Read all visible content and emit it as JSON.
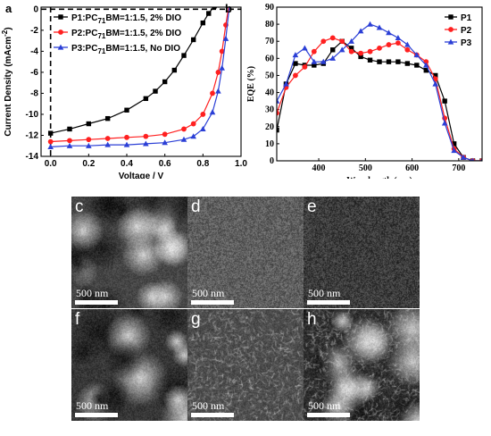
{
  "chart_data": [
    {
      "type": "line",
      "panel_label": "a",
      "xlabel": "Voltage / V",
      "ylabel": "Current Density (mAcm",
      "ylabel_sup": "-2",
      "ylabel_end": ")",
      "xlim": [
        -0.05,
        1.0
      ],
      "ylim": [
        -14,
        0.2
      ],
      "xticks": [
        "0.0",
        "0.2",
        "0.4",
        "0.6",
        "0.8",
        "1.0"
      ],
      "xtick_values": [
        0.0,
        0.2,
        0.4,
        0.6,
        0.8,
        1.0
      ],
      "yticks": [
        "0",
        "-2",
        "-4",
        "-6",
        "-8",
        "-10",
        "-12",
        "-14"
      ],
      "ytick_values": [
        0,
        -2,
        -4,
        -6,
        -8,
        -10,
        -12,
        -14
      ],
      "legend_position": "top-left",
      "series": [
        {
          "name": "P1:PC71BM=1:1.5, 2% DIO",
          "legend_parts": [
            "P1:PC",
            "71",
            "BM=1:1.5, 2% DIO"
          ],
          "color": "#000000",
          "marker": "square",
          "x": [
            0.0,
            0.1,
            0.2,
            0.3,
            0.4,
            0.5,
            0.55,
            0.6,
            0.65,
            0.7,
            0.75,
            0.8,
            0.83,
            0.86,
            0.88
          ],
          "y": [
            -11.8,
            -11.4,
            -10.9,
            -10.4,
            -9.6,
            -8.5,
            -7.8,
            -6.9,
            -5.8,
            -4.4,
            -2.9,
            -1.3,
            -0.4,
            0.3,
            1.0
          ]
        },
        {
          "name": "P2:PC71BM=1:1.5, 2% DIO",
          "legend_parts": [
            "P2:PC",
            "71",
            "BM=1:1.5, 2% DIO"
          ],
          "color": "#ff2020",
          "marker": "circle",
          "x": [
            0.0,
            0.1,
            0.2,
            0.3,
            0.4,
            0.5,
            0.6,
            0.7,
            0.75,
            0.8,
            0.85,
            0.88,
            0.9,
            0.92,
            0.94
          ],
          "y": [
            -12.6,
            -12.5,
            -12.4,
            -12.3,
            -12.2,
            -12.1,
            -11.9,
            -11.4,
            -10.9,
            -10.0,
            -8.0,
            -6.0,
            -4.0,
            -1.5,
            0.8
          ]
        },
        {
          "name": "P3:PC71BM=1:1.5, No DIO",
          "legend_parts": [
            "P3:PC",
            "71",
            "BM=1:1.5, No DIO"
          ],
          "color": "#2b3fd6",
          "marker": "triangle",
          "x": [
            0.0,
            0.1,
            0.2,
            0.3,
            0.4,
            0.5,
            0.6,
            0.7,
            0.75,
            0.8,
            0.85,
            0.88,
            0.9,
            0.92,
            0.94
          ],
          "y": [
            -13.1,
            -13.0,
            -13.0,
            -12.9,
            -12.9,
            -12.8,
            -12.7,
            -12.4,
            -12.1,
            -11.4,
            -9.8,
            -7.8,
            -5.6,
            -2.8,
            0.5
          ]
        }
      ]
    },
    {
      "type": "line",
      "panel_label": "b",
      "xlabel": "Wavelength (nm)",
      "ylabel": "EQE (%)",
      "xlim": [
        310,
        750
      ],
      "ylim": [
        0,
        90
      ],
      "xticks": [
        "400",
        "500",
        "600",
        "700"
      ],
      "xtick_values": [
        400,
        500,
        600,
        700
      ],
      "yticks": [
        "0",
        "10",
        "20",
        "30",
        "40",
        "50",
        "60",
        "70",
        "80",
        "90"
      ],
      "ytick_values": [
        0,
        10,
        20,
        30,
        40,
        50,
        60,
        70,
        80,
        90
      ],
      "legend_position": "top-right",
      "series": [
        {
          "name": "P1",
          "color": "#000000",
          "marker": "square",
          "x": [
            310,
            330,
            350,
            370,
            390,
            410,
            430,
            450,
            470,
            490,
            510,
            530,
            550,
            570,
            590,
            610,
            630,
            650,
            670,
            690,
            710,
            730,
            750
          ],
          "y": [
            18,
            45,
            57,
            56,
            56,
            57,
            65,
            70,
            66,
            61,
            59,
            58,
            58,
            58,
            57,
            56,
            53,
            50,
            35,
            10,
            2,
            0,
            0
          ]
        },
        {
          "name": "P2",
          "color": "#ff2020",
          "marker": "circle",
          "x": [
            310,
            330,
            350,
            370,
            390,
            410,
            430,
            450,
            470,
            490,
            510,
            530,
            550,
            570,
            590,
            610,
            630,
            650,
            670,
            690,
            710,
            730,
            750
          ],
          "y": [
            28,
            43,
            50,
            55,
            64,
            70,
            72,
            70,
            64,
            63,
            64,
            66,
            68,
            69,
            65,
            62,
            58,
            48,
            25,
            7,
            2,
            0,
            0
          ]
        },
        {
          "name": "P3",
          "color": "#2b3fd6",
          "marker": "triangle",
          "x": [
            310,
            330,
            350,
            370,
            390,
            410,
            430,
            450,
            470,
            490,
            510,
            530,
            550,
            570,
            590,
            610,
            630,
            650,
            670,
            690,
            710,
            730,
            750
          ],
          "y": [
            35,
            45,
            62,
            66,
            58,
            58,
            60,
            65,
            70,
            76,
            80,
            78,
            75,
            72,
            68,
            62,
            56,
            45,
            22,
            6,
            2,
            0,
            0
          ]
        }
      ]
    }
  ],
  "micrographs": [
    {
      "label": "c",
      "scale_text": "500 nm",
      "texture": "coarse-blobs"
    },
    {
      "label": "d",
      "scale_text": "500 nm",
      "texture": "fine-grain"
    },
    {
      "label": "e",
      "scale_text": "500 nm",
      "texture": "fine-grain-dark"
    },
    {
      "label": "f",
      "scale_text": "500 nm",
      "texture": "coarse-blobs-dark"
    },
    {
      "label": "g",
      "scale_text": "500 nm",
      "texture": "fibrous"
    },
    {
      "label": "h",
      "scale_text": "500 nm",
      "texture": "fibrous-blobs"
    }
  ]
}
